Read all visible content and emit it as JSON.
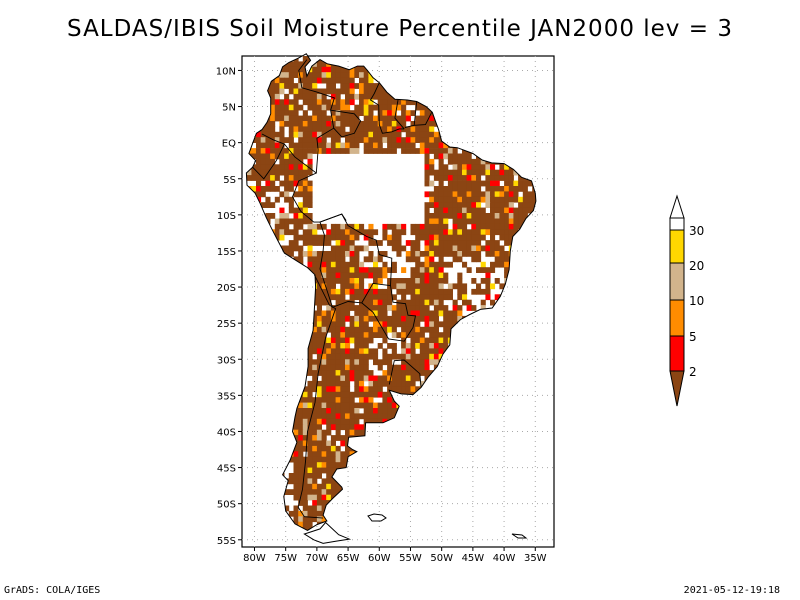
{
  "title": "SALDAS/IBIS Soil Moisture Percentile JAN2000 lev = 3",
  "footer": {
    "credit": "GrADS: COLA/IGES",
    "timestamp": "2021-05-12-19:18"
  },
  "map": {
    "region": "South America",
    "lon_range": [
      -82,
      -32
    ],
    "lat_range": [
      -56,
      12
    ],
    "x_ticks": [
      "80W",
      "75W",
      "70W",
      "65W",
      "60W",
      "55W",
      "50W",
      "45W",
      "40W",
      "35W"
    ],
    "x_tick_lons": [
      -80,
      -75,
      -70,
      -65,
      -60,
      -55,
      -50,
      -45,
      -40,
      -35
    ],
    "y_ticks": [
      "10N",
      "5N",
      "EQ",
      "5S",
      "10S",
      "15S",
      "20S",
      "25S",
      "30S",
      "35S",
      "40S",
      "45S",
      "50S",
      "55S"
    ],
    "y_tick_lats": [
      10,
      5,
      0,
      -5,
      -10,
      -15,
      -20,
      -25,
      -30,
      -35,
      -40,
      -45,
      -50,
      -55
    ],
    "gridlines": "dotted"
  },
  "legend": {
    "labels": [
      "2",
      "5",
      "10",
      "20",
      "30"
    ],
    "colors": {
      "below_2": "#8B4513",
      "2_5": "#FF0000",
      "5_10": "#FF8C00",
      "10_20": "#D2B48C",
      "20_30": "#FFD700",
      "above_30": "#FFFFFF"
    }
  }
}
